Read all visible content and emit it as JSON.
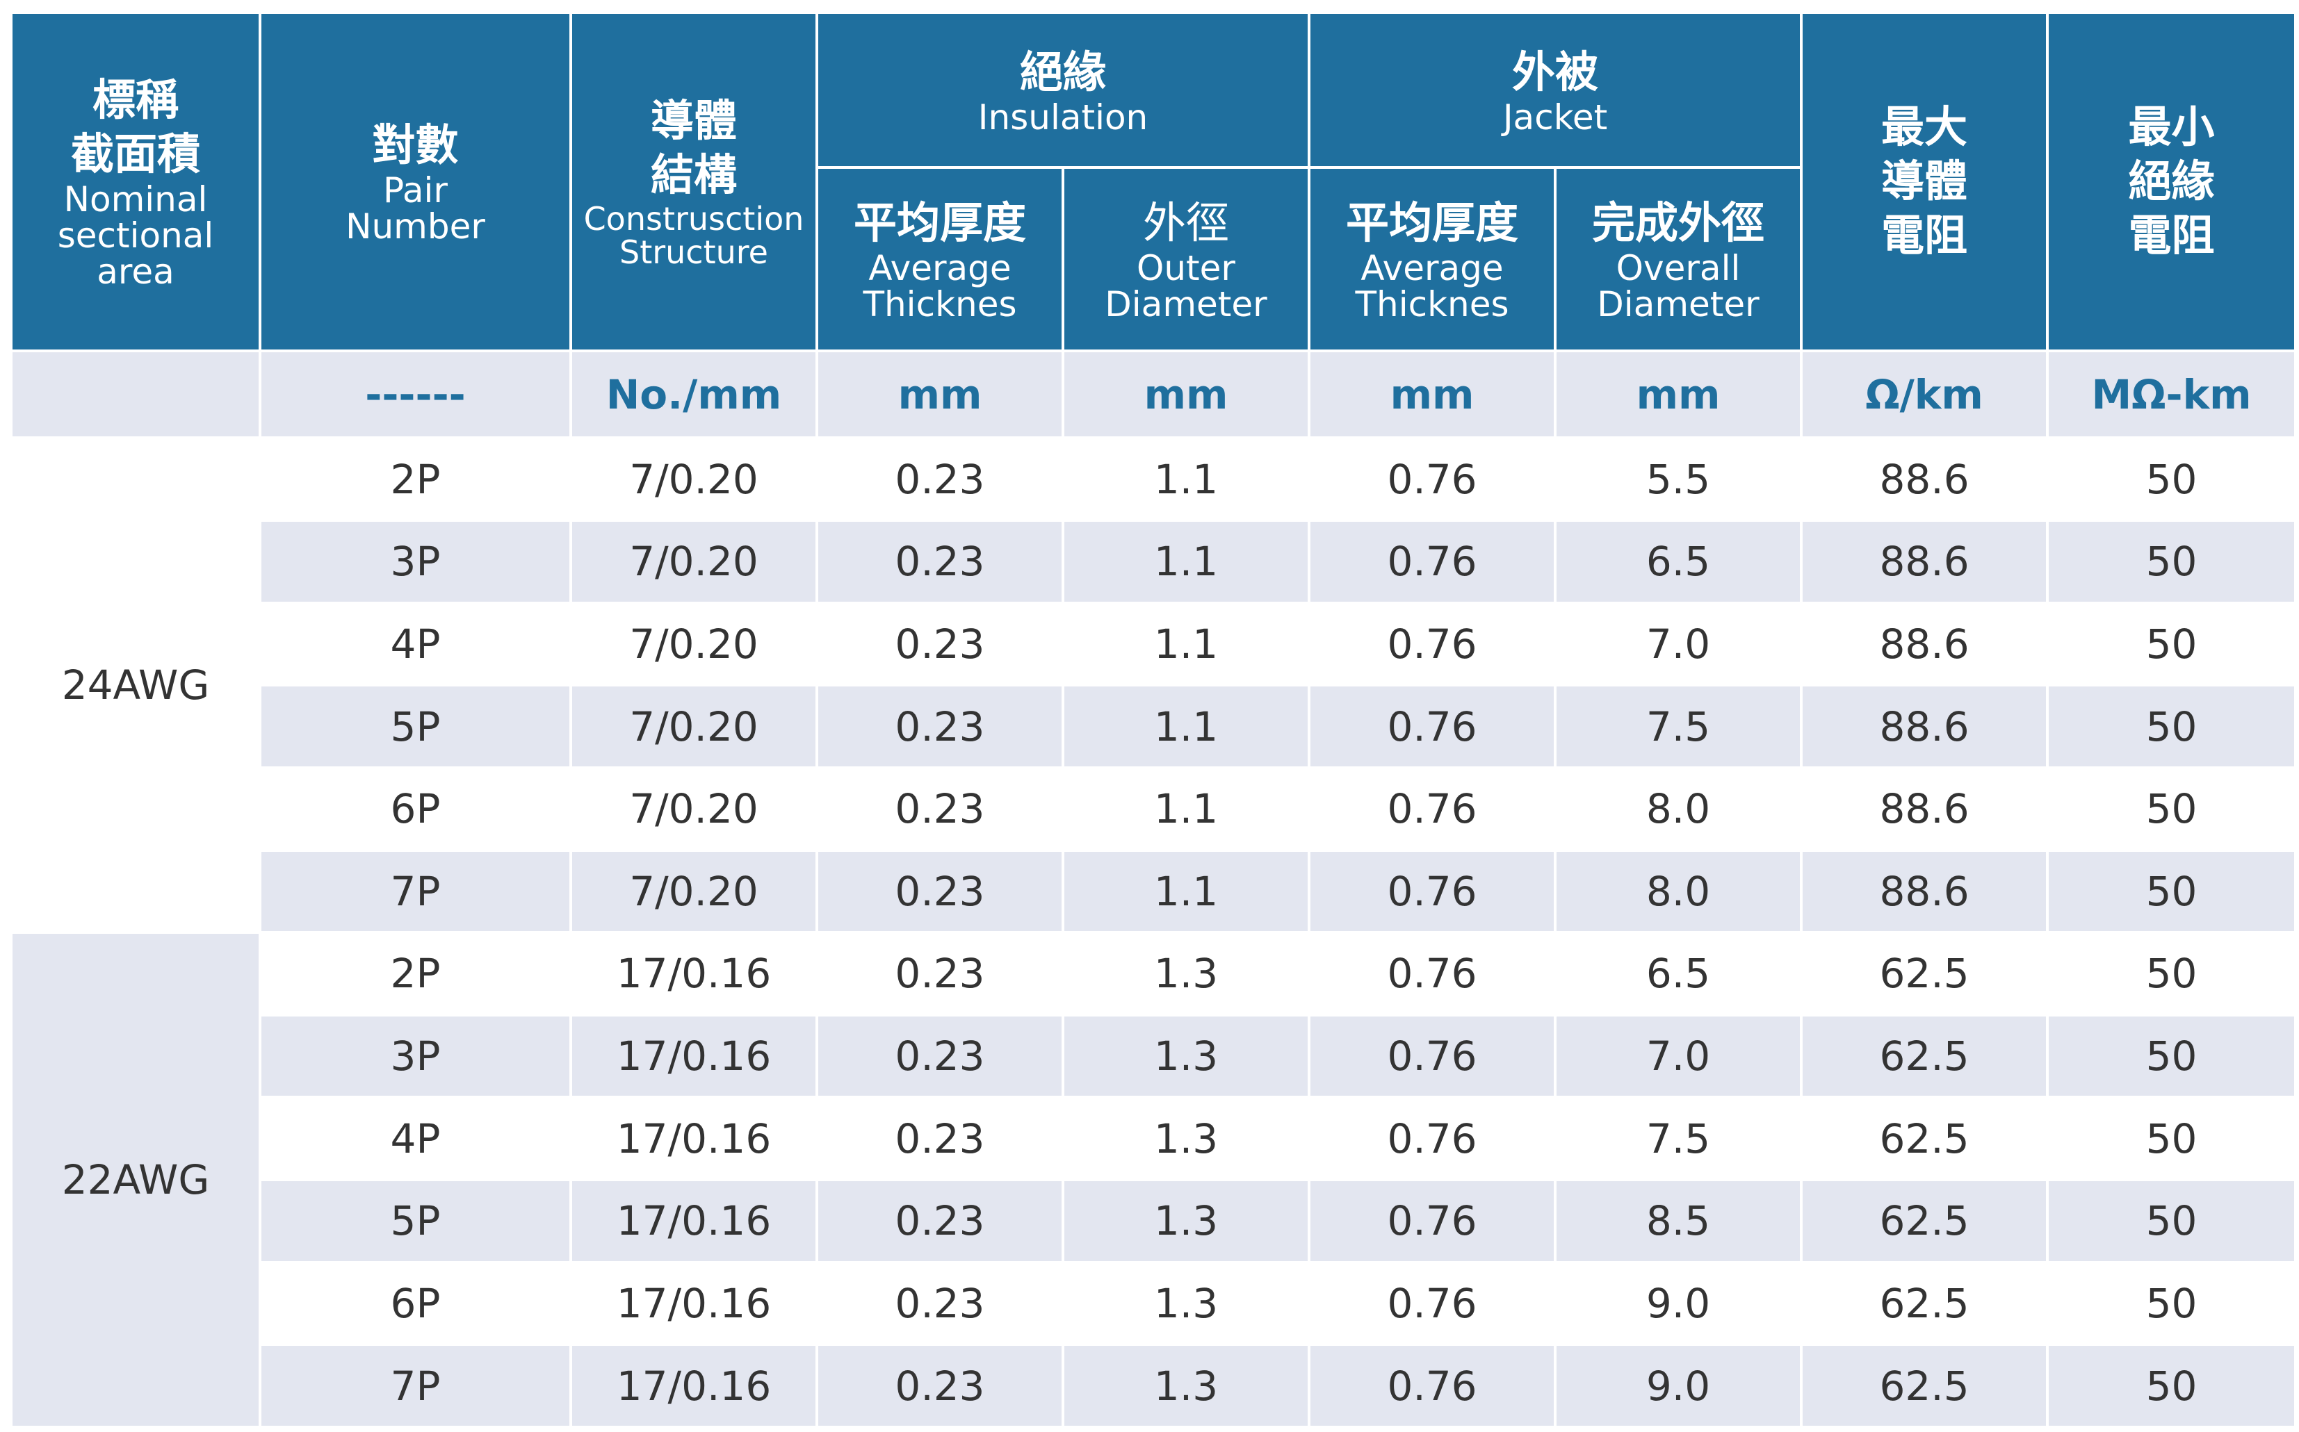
{
  "header": {
    "nominal": {
      "zh1": "標稱",
      "zh2": "截面積",
      "en1": "Nominal",
      "en2": "sectional",
      "en3": "area"
    },
    "pair": {
      "zh": "對數",
      "en1": "Pair",
      "en2": "Number"
    },
    "structure": {
      "zh1": "導體",
      "zh2": "結構",
      "en1": "Construsction",
      "en2": "Structure"
    },
    "insulation": {
      "zh": "絕緣",
      "en": "Insulation",
      "avg": {
        "zh": "平均厚度",
        "en1": "Average",
        "en2": "Thicknes"
      },
      "outer": {
        "zh": "外徑",
        "en1": "Outer",
        "en2": "Diameter"
      }
    },
    "jacket": {
      "zh": "外被",
      "en": "Jacket",
      "avg": {
        "zh": "平均厚度",
        "en1": "Average",
        "en2": "Thicknes"
      },
      "overall": {
        "zh": "完成外徑",
        "en1": "Overall",
        "en2": "Diameter"
      }
    },
    "max_resistance": {
      "zh1": "最大",
      "zh2": "導體",
      "zh3": "電阻"
    },
    "min_insulation": {
      "zh1": "最小",
      "zh2": "絕緣",
      "zh3": "電阻"
    }
  },
  "units": [
    "",
    "------",
    "No./mm",
    "mm",
    "mm",
    "mm",
    "mm",
    "Ω/km",
    "MΩ-km"
  ],
  "groups": [
    {
      "name": "24AWG",
      "rows": [
        [
          "2P",
          "7/0.20",
          "0.23",
          "1.1",
          "0.76",
          "5.5",
          "88.6",
          "50"
        ],
        [
          "3P",
          "7/0.20",
          "0.23",
          "1.1",
          "0.76",
          "6.5",
          "88.6",
          "50"
        ],
        [
          "4P",
          "7/0.20",
          "0.23",
          "1.1",
          "0.76",
          "7.0",
          "88.6",
          "50"
        ],
        [
          "5P",
          "7/0.20",
          "0.23",
          "1.1",
          "0.76",
          "7.5",
          "88.6",
          "50"
        ],
        [
          "6P",
          "7/0.20",
          "0.23",
          "1.1",
          "0.76",
          "8.0",
          "88.6",
          "50"
        ],
        [
          "7P",
          "7/0.20",
          "0.23",
          "1.1",
          "0.76",
          "8.0",
          "88.6",
          "50"
        ]
      ]
    },
    {
      "name": "22AWG",
      "rows": [
        [
          "2P",
          "17/0.16",
          "0.23",
          "1.3",
          "0.76",
          "6.5",
          "62.5",
          "50"
        ],
        [
          "3P",
          "17/0.16",
          "0.23",
          "1.3",
          "0.76",
          "7.0",
          "62.5",
          "50"
        ],
        [
          "4P",
          "17/0.16",
          "0.23",
          "1.3",
          "0.76",
          "7.5",
          "62.5",
          "50"
        ],
        [
          "5P",
          "17/0.16",
          "0.23",
          "1.3",
          "0.76",
          "8.5",
          "62.5",
          "50"
        ],
        [
          "6P",
          "17/0.16",
          "0.23",
          "1.3",
          "0.76",
          "9.0",
          "62.5",
          "50"
        ],
        [
          "7P",
          "17/0.16",
          "0.23",
          "1.3",
          "0.76",
          "9.0",
          "62.5",
          "50"
        ]
      ]
    }
  ],
  "colors": {
    "header_bg": "#1f6f9e",
    "header_text": "#ffffff",
    "stripe": "#e3e6f0",
    "unit_text": "#1f6f9e",
    "body_text": "#333333"
  }
}
